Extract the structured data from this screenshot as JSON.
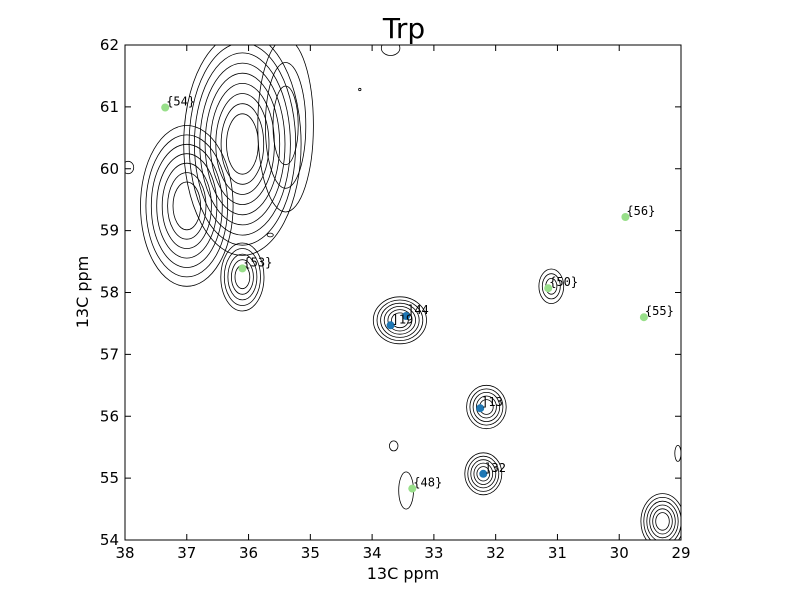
{
  "chart_data": {
    "type": "scatter",
    "title": "Trp",
    "xlabel": "13C ppm",
    "ylabel": "13C ppm",
    "xlim": [
      38,
      29
    ],
    "ylim": [
      62,
      54
    ],
    "x_reversed": true,
    "y_reversed": true,
    "grid": false,
    "x_ticks": [
      38,
      37,
      36,
      35,
      34,
      33,
      32,
      31,
      30,
      29
    ],
    "y_ticks": [
      54,
      55,
      56,
      57,
      58,
      59,
      60,
      61,
      62
    ],
    "colors": {
      "assigned": "#1f77b4",
      "unassigned": "#98df8a",
      "contour": "#000000"
    },
    "series": [
      {
        "kind": "assigned",
        "color": "#1f77b4",
        "points": [
          {
            "label": "]32",
            "x": 32.2,
            "y": 55.07
          },
          {
            "label": "]13",
            "x": 32.25,
            "y": 56.13
          },
          {
            "label": "]19",
            "x": 33.7,
            "y": 57.47
          },
          {
            "label": "]44",
            "x": 33.45,
            "y": 57.62
          }
        ]
      },
      {
        "kind": "unassigned",
        "color": "#98df8a",
        "points": [
          {
            "label": "{48}",
            "x": 33.35,
            "y": 54.83
          },
          {
            "label": "{55}",
            "x": 29.6,
            "y": 57.6
          },
          {
            "label": "{50}",
            "x": 31.15,
            "y": 58.07
          },
          {
            "label": "{53}",
            "x": 36.1,
            "y": 58.39
          },
          {
            "label": "{56}",
            "x": 29.9,
            "y": 59.22
          },
          {
            "label": "{54}",
            "x": 37.35,
            "y": 60.99
          }
        ]
      }
    ],
    "contour_peaks": [
      {
        "x": 32.2,
        "y": 55.07,
        "rx": 0.3,
        "ry": 0.34,
        "levels": 5
      },
      {
        "x": 32.15,
        "y": 56.15,
        "rx": 0.32,
        "ry": 0.35,
        "levels": 5
      },
      {
        "x": 33.55,
        "y": 57.55,
        "rx": 0.43,
        "ry": 0.38,
        "levels": 6
      },
      {
        "x": 31.1,
        "y": 58.1,
        "rx": 0.2,
        "ry": 0.28,
        "levels": 3
      },
      {
        "x": 33.45,
        "y": 54.8,
        "rx": 0.12,
        "ry": 0.3,
        "levels": 1
      },
      {
        "x": 33.65,
        "y": 55.52,
        "rx": 0.07,
        "ry": 0.08,
        "levels": 1
      },
      {
        "x": 29.3,
        "y": 54.3,
        "rx": 0.35,
        "ry": 0.45,
        "levels": 6
      },
      {
        "x": 29.05,
        "y": 55.4,
        "rx": 0.05,
        "ry": 0.13,
        "levels": 1
      },
      {
        "x": 36.1,
        "y": 58.25,
        "rx": 0.35,
        "ry": 0.55,
        "levels": 5
      },
      {
        "x": 37.0,
        "y": 59.4,
        "rx": 0.75,
        "ry": 1.3,
        "levels": 7
      },
      {
        "x": 37.95,
        "y": 60.02,
        "rx": 0.09,
        "ry": 0.1,
        "levels": 1
      },
      {
        "x": 36.1,
        "y": 60.4,
        "rx": 0.95,
        "ry": 1.8,
        "levels": 9
      },
      {
        "x": 35.4,
        "y": 60.7,
        "rx": 0.45,
        "ry": 1.4,
        "levels": 3
      },
      {
        "x": 33.7,
        "y": 61.95,
        "rx": 0.15,
        "ry": 0.12,
        "levels": 1
      },
      {
        "x": 35.65,
        "y": 58.93,
        "rx": 0.05,
        "ry": 0.03,
        "levels": 1
      },
      {
        "x": 34.2,
        "y": 61.28,
        "rx": 0.02,
        "ry": 0.02,
        "levels": 1
      }
    ]
  }
}
